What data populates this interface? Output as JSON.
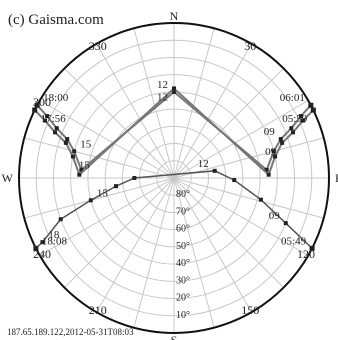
{
  "copyright": "(c) Gaisma.com",
  "footer": "187.65.189.122,2012-05-31T08:03",
  "compass": {
    "n": "N",
    "s": "S",
    "e": "E",
    "w": "W"
  },
  "azimuth_labels": [
    {
      "az": 30,
      "text": "30"
    },
    {
      "az": 120,
      "text": "120"
    },
    {
      "az": 150,
      "text": "150"
    },
    {
      "az": 210,
      "text": "210"
    },
    {
      "az": 240,
      "text": "240"
    },
    {
      "az": 300,
      "text": "300"
    },
    {
      "az": 330,
      "text": "330"
    }
  ],
  "colors": {
    "grid": "#c8c8c8",
    "rim": "#111111",
    "summer": "#777777",
    "winter": "#555555",
    "marker": "#222222"
  },
  "chart_data": {
    "type": "polar-sun-path",
    "elevation_rings": [
      10,
      20,
      30,
      40,
      50,
      60,
      70,
      80
    ],
    "elevation_labels": [
      "10°",
      "20°",
      "30°",
      "40°",
      "50°",
      "60°",
      "70°",
      "80°"
    ],
    "series": [
      {
        "points": [
          {
            "az": 62,
            "el": 0,
            "label": "06:01"
          },
          {
            "az": 64,
            "el": 8
          },
          {
            "az": 67,
            "el": 16
          },
          {
            "az": 70,
            "el": 24,
            "label": "09"
          },
          {
            "az": 75,
            "el": 30
          },
          {
            "az": 85,
            "el": 36
          },
          {
            "az": 0,
            "el": 40,
            "label": "12"
          },
          {
            "az": 275,
            "el": 36
          },
          {
            "az": 285,
            "el": 30,
            "label": "15"
          },
          {
            "az": 290,
            "el": 24
          },
          {
            "az": 293,
            "el": 16
          },
          {
            "az": 296,
            "el": 8
          },
          {
            "az": 298,
            "el": 0,
            "label": "18:00"
          }
        ]
      },
      {
        "points": [
          {
            "az": 64,
            "el": 0,
            "label": "05:59"
          },
          {
            "az": 66,
            "el": 8
          },
          {
            "az": 69,
            "el": 16
          },
          {
            "az": 72,
            "el": 24,
            "label": "09"
          },
          {
            "az": 78,
            "el": 30
          },
          {
            "az": 88,
            "el": 35
          },
          {
            "az": 0,
            "el": 38,
            "label": "12"
          },
          {
            "az": 272,
            "el": 35
          },
          {
            "az": 282,
            "el": 30,
            "label": "15"
          },
          {
            "az": 288,
            "el": 24
          },
          {
            "az": 291,
            "el": 16
          },
          {
            "az": 294,
            "el": 8
          },
          {
            "az": 296,
            "el": 0,
            "label": "17:56"
          }
        ]
      },
      {
        "points": [
          {
            "az": 117,
            "el": 0,
            "label": "05:49"
          },
          {
            "az": 112,
            "el": 20,
            "label": "09"
          },
          {
            "az": 104,
            "el": 38
          },
          {
            "az": 92,
            "el": 55
          },
          {
            "az": 80,
            "el": 66,
            "label": "12"
          },
          {
            "az": 270,
            "el": 67
          },
          {
            "az": 262,
            "el": 56
          },
          {
            "az": 255,
            "el": 40,
            "label": "15"
          },
          {
            "az": 250,
            "el": 20
          },
          {
            "az": 244,
            "el": 5,
            "label": "18"
          },
          {
            "az": 243,
            "el": 0,
            "label": "18:08"
          }
        ]
      }
    ]
  }
}
